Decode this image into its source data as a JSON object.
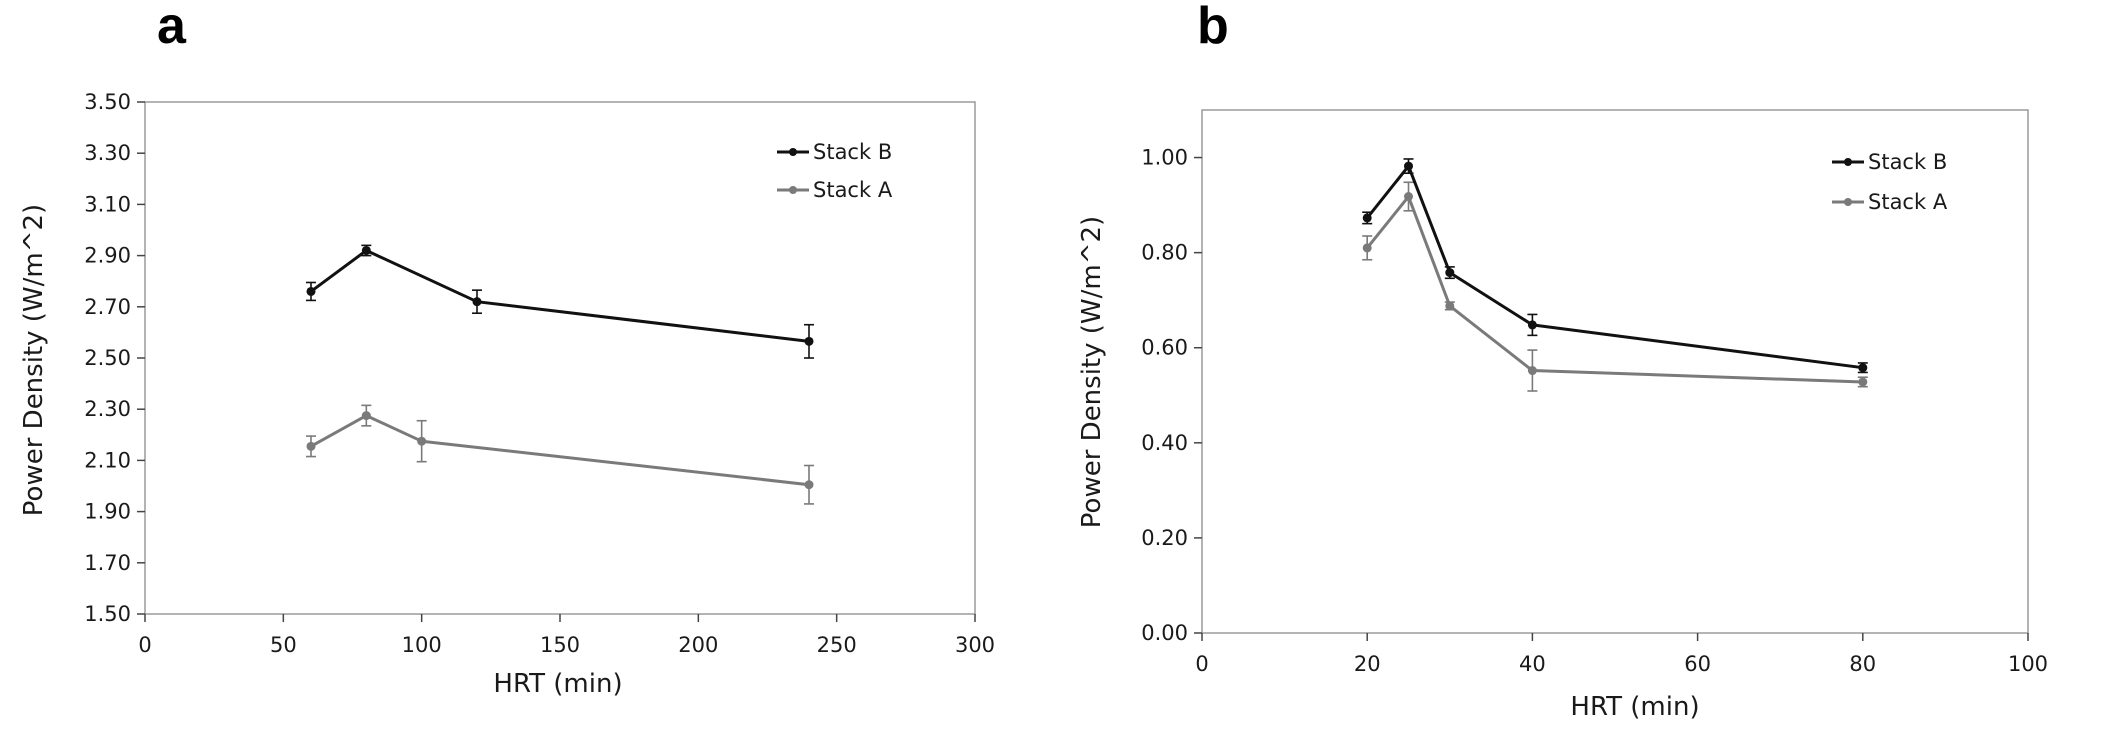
{
  "chart_data": [
    {
      "panel": "a",
      "type": "line",
      "xlabel": "HRT (min)",
      "ylabel": "Power Density (W/m^2)",
      "xlim": [
        0,
        300
      ],
      "ylim": [
        1.5,
        3.5
      ],
      "x_ticks": [
        0,
        50,
        100,
        150,
        200,
        250,
        300
      ],
      "y_ticks": [
        "1.50",
        "1.70",
        "1.90",
        "2.10",
        "2.30",
        "2.50",
        "2.70",
        "2.90",
        "3.10",
        "3.30",
        "3.50"
      ],
      "grid": false,
      "legend_position": "top-right",
      "series": [
        {
          "name": "Stack B",
          "color": "#111111",
          "points": [
            {
              "x": 60,
              "y": 2.76,
              "err": 0.035
            },
            {
              "x": 80,
              "y": 2.92,
              "err": 0.02
            },
            {
              "x": 120,
              "y": 2.72,
              "err": 0.045
            },
            {
              "x": 240,
              "y": 2.565,
              "err": 0.065
            }
          ]
        },
        {
          "name": "Stack A",
          "color": "#7a7a7a",
          "points": [
            {
              "x": 60,
              "y": 2.155,
              "err": 0.04
            },
            {
              "x": 80,
              "y": 2.275,
              "err": 0.04
            },
            {
              "x": 100,
              "y": 2.175,
              "err": 0.08
            },
            {
              "x": 240,
              "y": 2.005,
              "err": 0.075
            }
          ]
        }
      ]
    },
    {
      "panel": "b",
      "type": "line",
      "xlabel": "HRT (min)",
      "ylabel": "Power Density (W/m^2)",
      "xlim": [
        0,
        100
      ],
      "ylim": [
        0,
        1.1
      ],
      "x_ticks": [
        0,
        20,
        40,
        60,
        80,
        100
      ],
      "y_ticks": [
        "0.00",
        "0.20",
        "0.40",
        "0.60",
        "0.80",
        "1.00"
      ],
      "grid": false,
      "legend_position": "top-right",
      "series": [
        {
          "name": "Stack B",
          "color": "#111111",
          "points": [
            {
              "x": 20,
              "y": 0.873,
              "err": 0.012
            },
            {
              "x": 25,
              "y": 0.982,
              "err": 0.015
            },
            {
              "x": 30,
              "y": 0.758,
              "err": 0.012
            },
            {
              "x": 40,
              "y": 0.648,
              "err": 0.022
            },
            {
              "x": 80,
              "y": 0.558,
              "err": 0.01
            }
          ]
        },
        {
          "name": "Stack A",
          "color": "#7a7a7a",
          "points": [
            {
              "x": 20,
              "y": 0.81,
              "err": 0.025
            },
            {
              "x": 25,
              "y": 0.918,
              "err": 0.03
            },
            {
              "x": 30,
              "y": 0.688,
              "err": 0.008
            },
            {
              "x": 40,
              "y": 0.552,
              "err": 0.043
            },
            {
              "x": 80,
              "y": 0.528,
              "err": 0.01
            }
          ]
        }
      ]
    }
  ]
}
